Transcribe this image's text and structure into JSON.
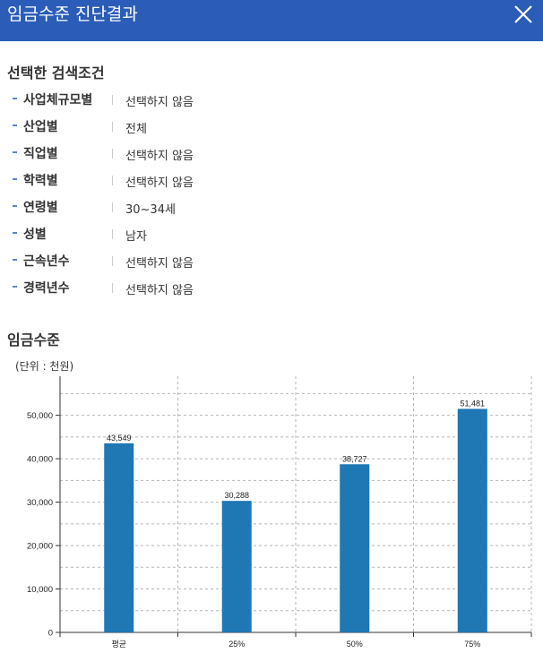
{
  "header": {
    "title": "임금수준 진단결과",
    "close_icon": "close-icon"
  },
  "criteria": {
    "title": "선택한 검색조건",
    "items": [
      {
        "label": "사업체규모별",
        "value": "선택하지 않음"
      },
      {
        "label": "산업별",
        "value": "전체"
      },
      {
        "label": "직업별",
        "value": "선택하지 않음"
      },
      {
        "label": "학력별",
        "value": "선택하지 않음"
      },
      {
        "label": "연령별",
        "value": "30~34세"
      },
      {
        "label": "성별",
        "value": "남자"
      },
      {
        "label": "근속년수",
        "value": "선택하지 않음"
      },
      {
        "label": "경력년수",
        "value": "선택하지 않음"
      }
    ]
  },
  "wage": {
    "title": "임금수준",
    "unit_label": "(단위 : 천원)"
  },
  "colors": {
    "header_bg": "#2a5cb8",
    "bar": "#1f77b4"
  },
  "chart_data": {
    "type": "bar",
    "categories": [
      "평균",
      "25%",
      "50%",
      "75%"
    ],
    "values": [
      43549,
      30288,
      38727,
      51481
    ],
    "value_labels": [
      "43,549",
      "30,288",
      "38,727",
      "51,481"
    ],
    "ylim": [
      0,
      59000
    ],
    "yticks": [
      0,
      10000,
      20000,
      30000,
      40000,
      50000
    ],
    "ytick_labels": [
      "0",
      "10,000",
      "20,000",
      "30,000",
      "40,000",
      "50,000"
    ],
    "grid": true
  }
}
